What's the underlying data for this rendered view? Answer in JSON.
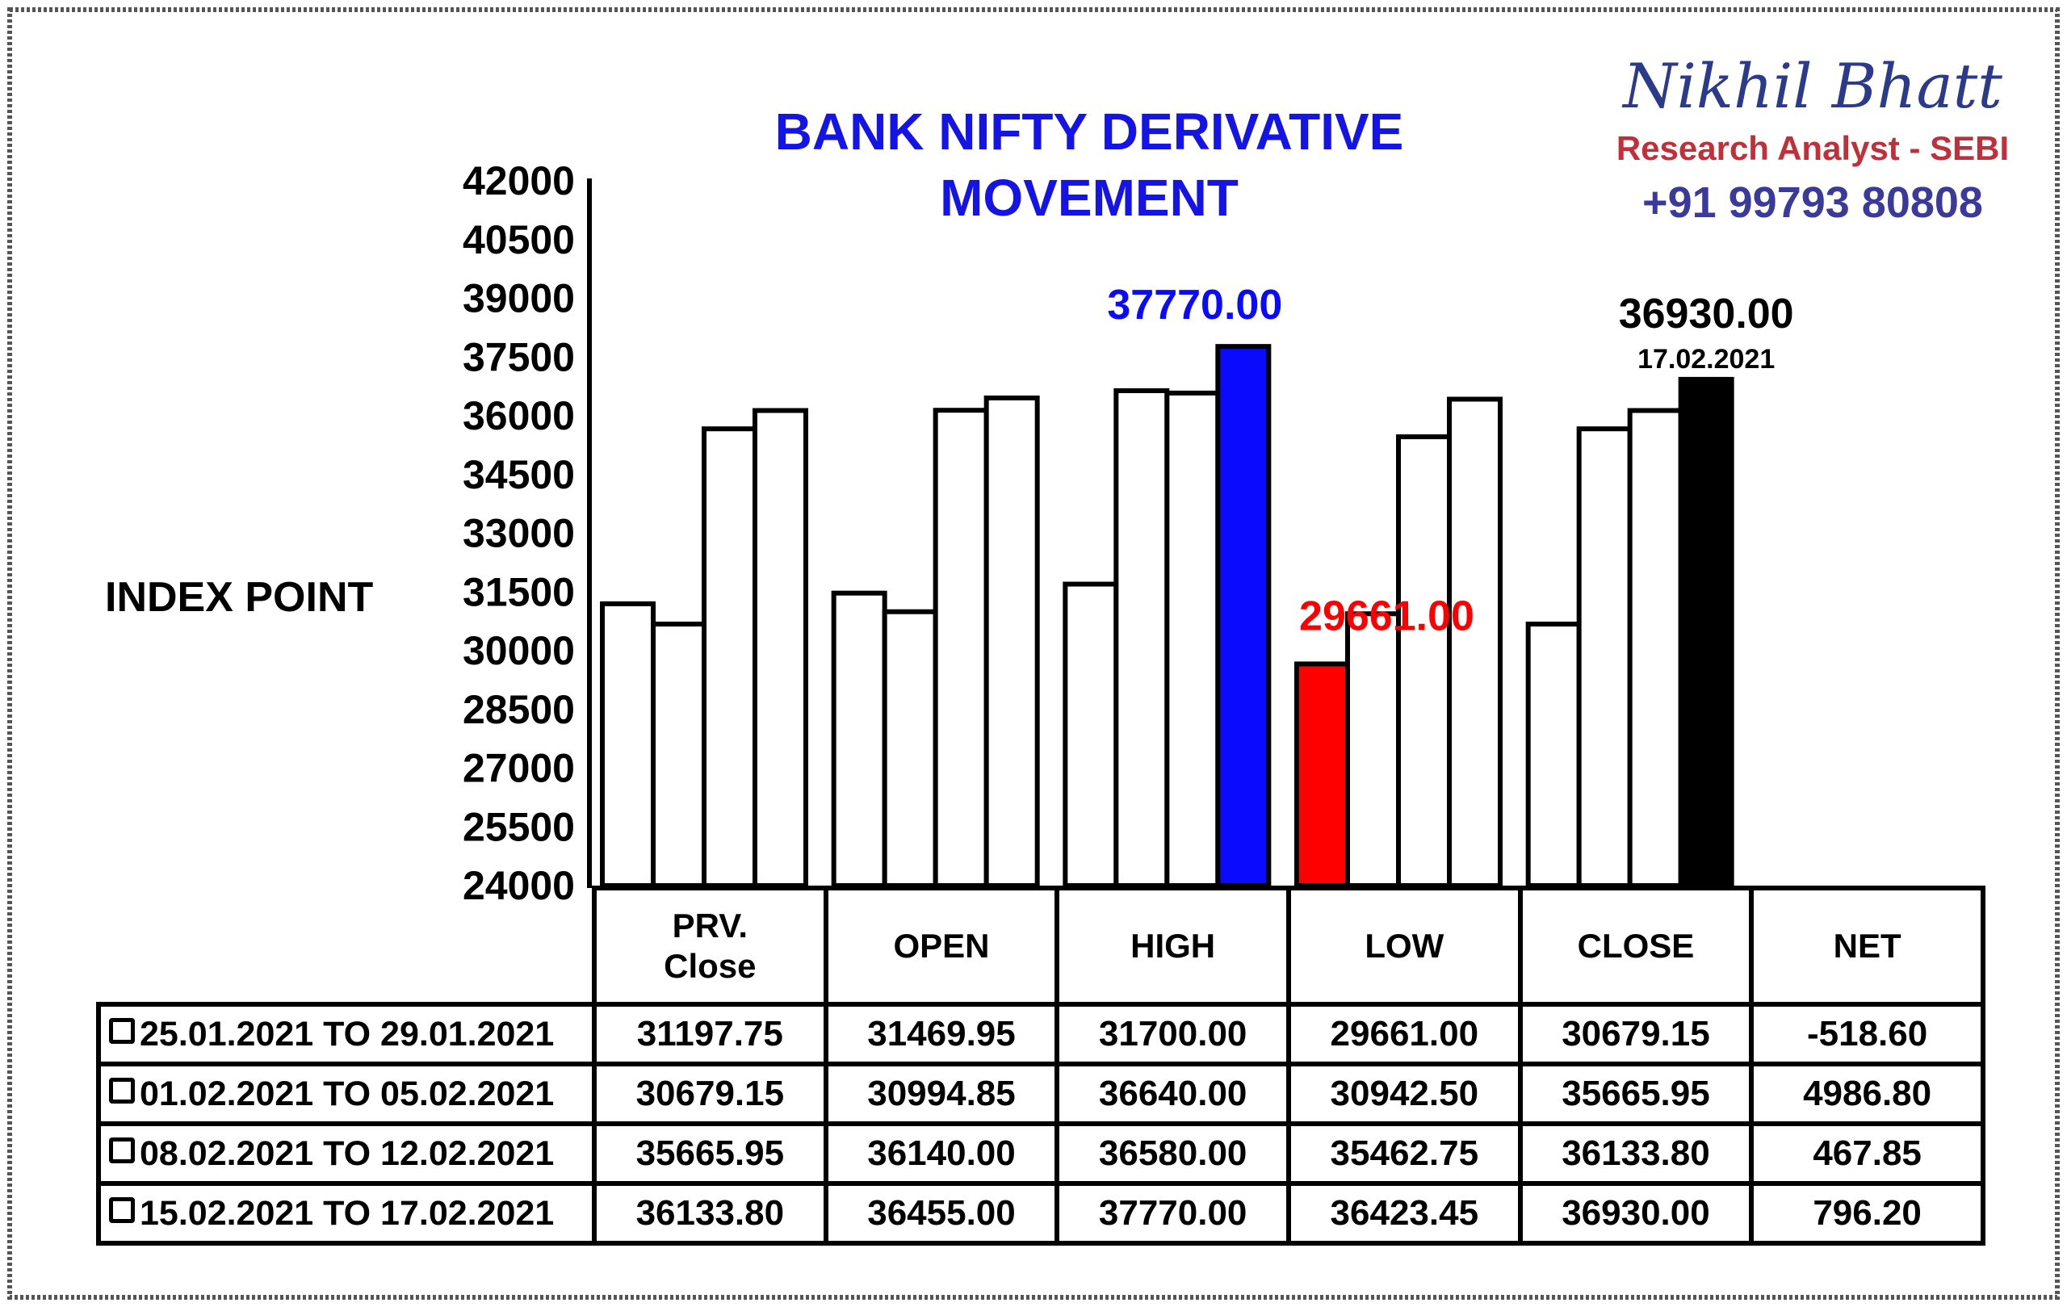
{
  "branding": {
    "name": "Nikhil Bhatt",
    "role": "Research Analyst - SEBI",
    "phone": "+91 99793 80808"
  },
  "chart_data": {
    "type": "bar",
    "title": "BANK NIFTY DERIVATIVE MOVEMENT",
    "y_label": "INDEX POINT",
    "categories": [
      "PRV.\nClose",
      "OPEN",
      "HIGH",
      "LOW",
      "CLOSE",
      "NET"
    ],
    "ylim": [
      24000,
      42000
    ],
    "yticks": [
      24000,
      25500,
      27000,
      28500,
      30000,
      31500,
      33000,
      34500,
      36000,
      37500,
      39000,
      40500,
      42000
    ],
    "date_note": "17.02.2021",
    "series": [
      {
        "name": "25.01.2021 TO 29.01.2021",
        "colors": [
          "#ffffff",
          "#ffffff",
          "#ffffff",
          "#ff0000",
          "#ffffff",
          null
        ],
        "values": [
          31197.75,
          31469.95,
          31700,
          29661,
          30679.15,
          -518.6
        ],
        "value_labels": [
          "31197.75",
          "31469.95",
          "31700.00",
          "29661.00",
          "30679.15",
          "-518.60"
        ]
      },
      {
        "name": "01.02.2021 TO 05.02.2021",
        "colors": [
          "#ffffff",
          "#ffffff",
          "#ffffff",
          "#ffffff",
          "#ffffff",
          null
        ],
        "values": [
          30679.15,
          30994.85,
          36640,
          30942.5,
          35665.95,
          4986.8
        ],
        "value_labels": [
          "30679.15",
          "30994.85",
          "36640.00",
          "30942.50",
          "35665.95",
          "4986.80"
        ]
      },
      {
        "name": "08.02.2021 TO 12.02.2021",
        "colors": [
          "#ffffff",
          "#ffffff",
          "#ffffff",
          "#ffffff",
          "#ffffff",
          null
        ],
        "values": [
          35665.95,
          36140,
          36580,
          35462.75,
          36133.8,
          467.85
        ],
        "value_labels": [
          "35665.95",
          "36140.00",
          "36580.00",
          "35462.75",
          "36133.80",
          "467.85"
        ]
      },
      {
        "name": "15.02.2021 TO 17.02.2021",
        "colors": [
          "#ffffff",
          "#ffffff",
          "#0a0aff",
          "#ffffff",
          "#000000",
          null
        ],
        "values": [
          36133.8,
          36455,
          37770,
          36423.45,
          36930,
          796.2
        ],
        "value_labels": [
          "36133.80",
          "36455.00",
          "37770.00",
          "36423.45",
          "36930.00",
          "796.20"
        ]
      }
    ]
  }
}
